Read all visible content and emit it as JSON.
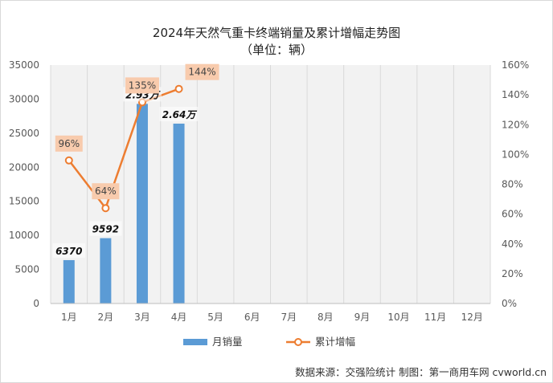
{
  "chart_data": {
    "type": "bar+line",
    "title": "2024年天然气重卡终端销量及累计增幅走势图",
    "subtitle": "（单位：辆）",
    "categories": [
      "1月",
      "2月",
      "3月",
      "4月",
      "5月",
      "6月",
      "7月",
      "8月",
      "9月",
      "10月",
      "11月",
      "12月"
    ],
    "series": [
      {
        "name": "月销量",
        "type": "bar",
        "axis": "left",
        "color": "#5B9BD5",
        "values": [
          6370,
          9592,
          29300,
          26400,
          null,
          null,
          null,
          null,
          null,
          null,
          null,
          null
        ],
        "data_labels": [
          "6370",
          "9592",
          "2.93万",
          "2.64万"
        ]
      },
      {
        "name": "累计增幅",
        "type": "line",
        "axis": "right",
        "color": "#ED7D31",
        "values": [
          0.96,
          0.64,
          1.35,
          1.44,
          null,
          null,
          null,
          null,
          null,
          null,
          null,
          null
        ],
        "data_labels": [
          "96%",
          "64%",
          "135%",
          "144%"
        ]
      }
    ],
    "y_left": {
      "min": 0,
      "max": 35000,
      "ticks": [
        "0",
        "5000",
        "10000",
        "15000",
        "20000",
        "25000",
        "30000",
        "35000"
      ]
    },
    "y_right": {
      "min": 0,
      "max": 1.6,
      "ticks": [
        "0%",
        "20%",
        "40%",
        "60%",
        "80%",
        "100%",
        "120%",
        "140%",
        "160%"
      ]
    },
    "grid": "vertical",
    "legend": "bottom",
    "source": "数据来源：交强险统计  制图：第一商用车网 cvworld.cn"
  }
}
